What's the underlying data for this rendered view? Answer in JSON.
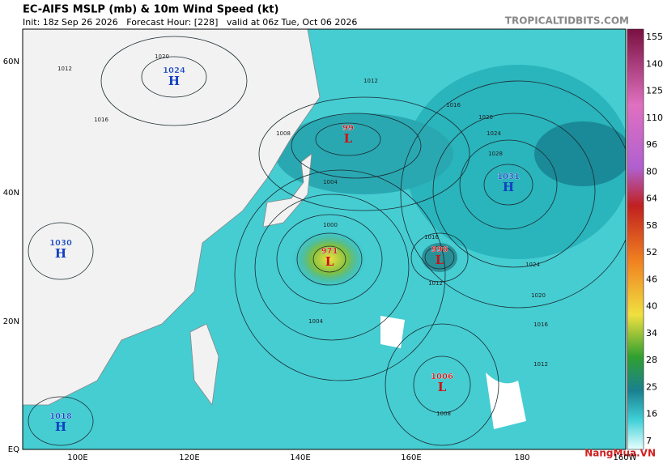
{
  "header": {
    "title": "EC-AIFS MSLP (mb) & 10m Wind Speed (kt)",
    "subtitle": "Init: 18z Sep 26 2026   Forecast Hour: [228]   valid at 06z Tue, Oct 06 2026",
    "site": "TROPICALTIDBITS.COM"
  },
  "map": {
    "lat_labels": [
      "60N",
      "40N",
      "20N",
      "EQ"
    ],
    "lon_labels": [
      "100E",
      "120E",
      "140E",
      "160E",
      "180",
      "160W"
    ],
    "centers": [
      {
        "value": "1024",
        "kind": "H"
      },
      {
        "value": "99",
        "kind": "L"
      },
      {
        "value": "1031",
        "kind": "H"
      },
      {
        "value": "971",
        "kind": "L"
      },
      {
        "value": "996",
        "kind": "L"
      },
      {
        "value": "1030",
        "kind": "H"
      },
      {
        "value": "1006",
        "kind": "L"
      },
      {
        "value": "1018",
        "kind": "H"
      }
    ],
    "isobar_labels": [
      "1012",
      "1020",
      "1016",
      "1008",
      "1004",
      "1000",
      "1012",
      "1016",
      "1020",
      "1024",
      "1028",
      "1024",
      "1020",
      "1016",
      "1012",
      "1008",
      "1004",
      "1016",
      "1012"
    ]
  },
  "colorbar": {
    "labels": [
      "155",
      "140",
      "125",
      "110",
      "96",
      "80",
      "64",
      "58",
      "52",
      "46",
      "40",
      "34",
      "28",
      "25",
      "16",
      "7"
    ]
  },
  "watermark": "NangMua.VN"
}
